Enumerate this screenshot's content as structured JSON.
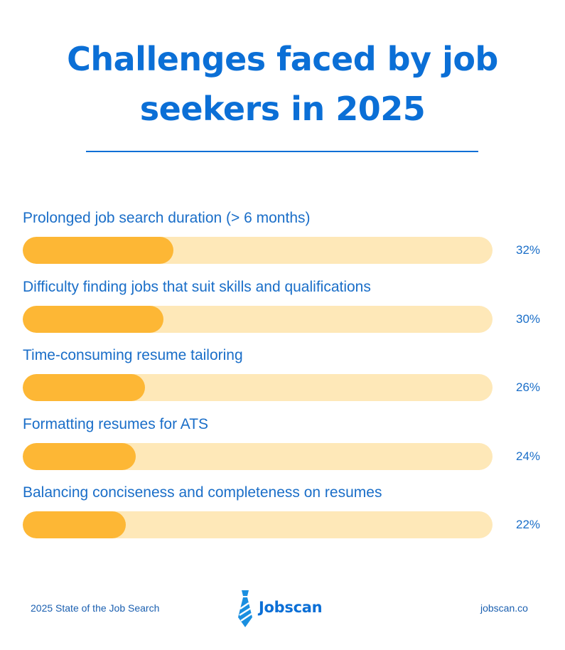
{
  "chart_data": {
    "type": "bar",
    "orientation": "horizontal",
    "title": "Challenges faced by job seekers in 2025",
    "categories": [
      "Prolonged job search duration (> 6 months)",
      "Difficulty finding jobs that suit skills and qualifications",
      "Time-consuming resume tailoring",
      "Formatting resumes for ATS",
      "Balancing conciseness and completeness on resumes"
    ],
    "values": [
      32,
      30,
      26,
      24,
      22
    ],
    "value_labels": [
      "32%",
      "30%",
      "26%",
      "24%",
      "22%"
    ],
    "xlim": [
      0,
      100
    ],
    "xlabel": "",
    "ylabel": "",
    "grid": false
  },
  "footer": {
    "left_text": "2025 State of the Job Search",
    "brand_name": "Jobscan",
    "right_text": "jobscan.co"
  },
  "colors": {
    "title": "#0b6fd6",
    "text": "#1a6ec8",
    "bar_fill": "#fdb735",
    "bar_track": "#fee8b8"
  }
}
